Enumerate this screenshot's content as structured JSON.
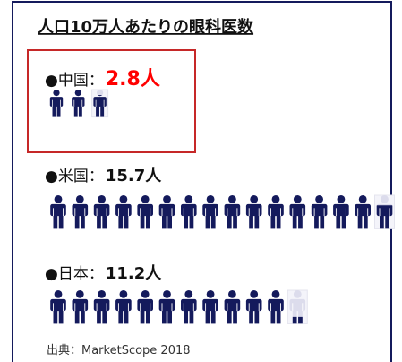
{
  "chart_data": {
    "type": "pictograph",
    "title": "人口10万人あたりの眼科医数",
    "categories": [
      "●中国：",
      "●米国：",
      "●日本："
    ],
    "values": [
      2.8,
      15.7,
      11.2
    ],
    "value_labels": [
      "2.8人",
      "15.7人",
      "11.2人"
    ],
    "label_colors": [
      "#ff0000",
      "#111111",
      "#111111"
    ],
    "color": "#141a5c",
    "empty_color": "#dcdcec",
    "source": "出典：MarketScope 2018"
  }
}
